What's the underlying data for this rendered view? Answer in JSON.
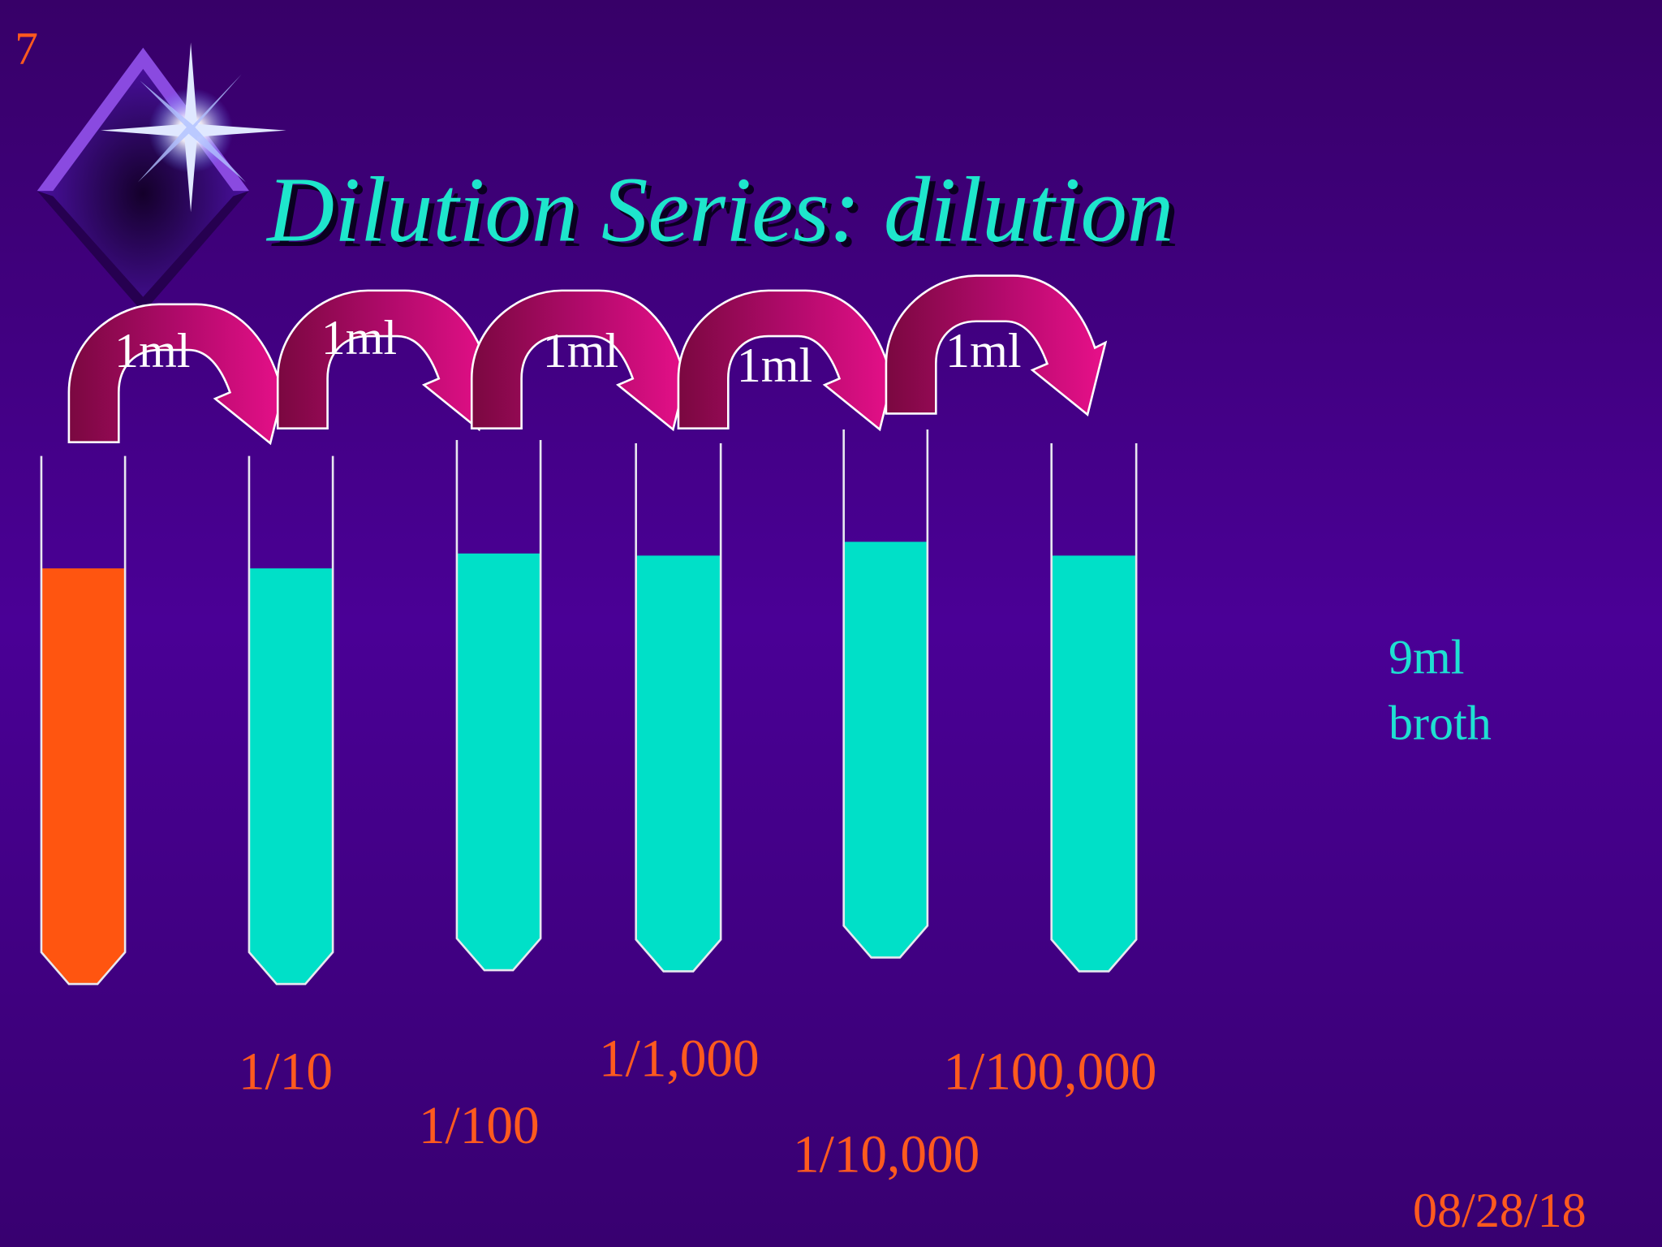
{
  "slide_number": "7",
  "title": "Dilution Series: dilution",
  "transfers": [
    "1ml",
    "1ml",
    "1ml",
    "1ml",
    "1ml"
  ],
  "dilutions": [
    "1/10",
    "1/100",
    "1/1,000",
    "1/10,000",
    "1/100,000"
  ],
  "note": [
    "9ml",
    "broth"
  ],
  "date": "08/28/18"
}
